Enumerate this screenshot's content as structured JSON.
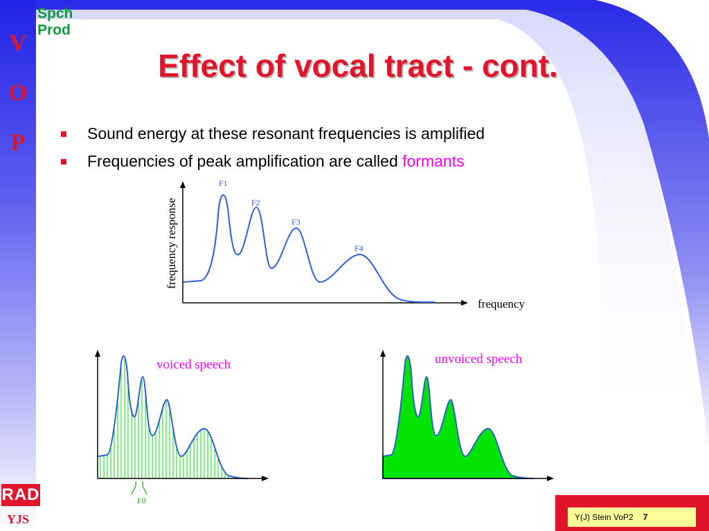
{
  "side_letters": [
    "V",
    "O",
    "P"
  ],
  "corner_label_line1": "Spch",
  "corner_label_line2": "Prod",
  "title": "Effect of vocal tract - cont.",
  "bullets": [
    {
      "text": "Sound energy at these resonant frequencies is amplified",
      "highlight": ""
    },
    {
      "text": "Frequencies of peak amplification are called ",
      "highlight": "formants"
    }
  ],
  "formant_figure": {
    "ylabel": "frequency response",
    "xlabel": "frequency",
    "peaks": [
      "F1",
      "F2",
      "F3",
      "F4"
    ]
  },
  "voiced_figure": {
    "label": "voiced speech",
    "pitch_label": "F0"
  },
  "unvoiced_figure": {
    "label": "unvoiced speech"
  },
  "logo_text": "RAD",
  "author_initials": "YJS",
  "footer": {
    "text": "Y(J) Stein VoP2",
    "page": "7"
  },
  "colors": {
    "accent_red": "#e0142a",
    "curve_blue": "#2b5fd6",
    "formant_magenta": "#ff00ff",
    "spectrum_green": "#00e400",
    "side_bar_blue": "#2323e6",
    "footer_yellow": "#ffff99"
  }
}
